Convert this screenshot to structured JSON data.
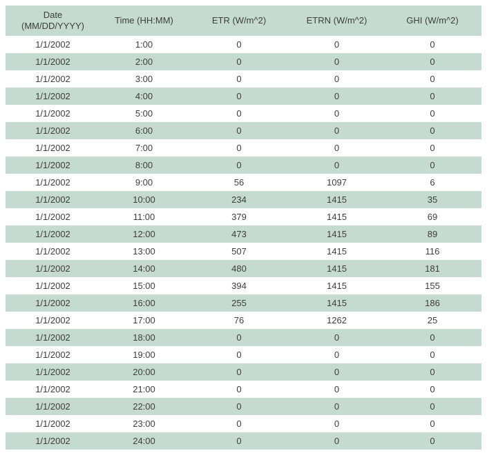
{
  "chart_data": {
    "type": "table",
    "columns": [
      "Date\n(MM/DD/YYYY)",
      "Time (HH:MM)",
      "ETR (W/m^2)",
      "ETRN (W/m^2)",
      "GHI (W/m^2)"
    ],
    "rows": [
      [
        "1/1/2002",
        "1:00",
        0,
        0,
        0
      ],
      [
        "1/1/2002",
        "2:00",
        0,
        0,
        0
      ],
      [
        "1/1/2002",
        "3:00",
        0,
        0,
        0
      ],
      [
        "1/1/2002",
        "4:00",
        0,
        0,
        0
      ],
      [
        "1/1/2002",
        "5:00",
        0,
        0,
        0
      ],
      [
        "1/1/2002",
        "6:00",
        0,
        0,
        0
      ],
      [
        "1/1/2002",
        "7:00",
        0,
        0,
        0
      ],
      [
        "1/1/2002",
        "8:00",
        0,
        0,
        0
      ],
      [
        "1/1/2002",
        "9:00",
        56,
        1097,
        6
      ],
      [
        "1/1/2002",
        "10:00",
        234,
        1415,
        35
      ],
      [
        "1/1/2002",
        "11:00",
        379,
        1415,
        69
      ],
      [
        "1/1/2002",
        "12:00",
        473,
        1415,
        89
      ],
      [
        "1/1/2002",
        "13:00",
        507,
        1415,
        116
      ],
      [
        "1/1/2002",
        "14:00",
        480,
        1415,
        181
      ],
      [
        "1/1/2002",
        "15:00",
        394,
        1415,
        155
      ],
      [
        "1/1/2002",
        "16:00",
        255,
        1415,
        186
      ],
      [
        "1/1/2002",
        "17:00",
        76,
        1262,
        25
      ],
      [
        "1/1/2002",
        "18:00",
        0,
        0,
        0
      ],
      [
        "1/1/2002",
        "19:00",
        0,
        0,
        0
      ],
      [
        "1/1/2002",
        "20:00",
        0,
        0,
        0
      ],
      [
        "1/1/2002",
        "21:00",
        0,
        0,
        0
      ],
      [
        "1/1/2002",
        "22:00",
        0,
        0,
        0
      ],
      [
        "1/1/2002",
        "23:00",
        0,
        0,
        0
      ],
      [
        "1/1/2002",
        "24:00",
        0,
        0,
        0
      ]
    ],
    "legend": [],
    "title": ""
  },
  "colors": {
    "header_bg": "#c5dad1",
    "stripe_bg": "#c5dad1",
    "text": "#3d3d3d",
    "page_bg": "#ffffff"
  }
}
